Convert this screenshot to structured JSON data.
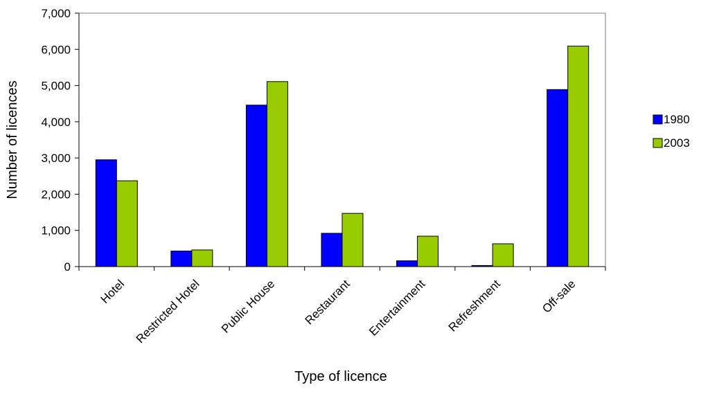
{
  "chart_data": {
    "type": "bar",
    "categories": [
      "Hotel",
      "Restricted Hotel",
      "Public House",
      "Restaurant",
      "Entertainment",
      "Refreshment",
      "Off-sale"
    ],
    "series": [
      {
        "name": "1980",
        "color": "#0000ff",
        "values": [
          2950,
          430,
          4460,
          920,
          160,
          30,
          4890
        ]
      },
      {
        "name": "2003",
        "color": "#99cc00",
        "values": [
          2370,
          460,
          5110,
          1470,
          840,
          630,
          6090
        ]
      }
    ],
    "xlabel": "Type of licence",
    "ylabel": "Number of licences",
    "ylim": [
      0,
      7000
    ],
    "yticks": [
      0,
      1000,
      2000,
      3000,
      4000,
      5000,
      6000,
      7000
    ],
    "ytick_labels": [
      "0",
      "1,000",
      "2,000",
      "3,000",
      "4,000",
      "5,000",
      "6,000",
      "7,000"
    ],
    "grid": false,
    "legend_position": "right"
  }
}
